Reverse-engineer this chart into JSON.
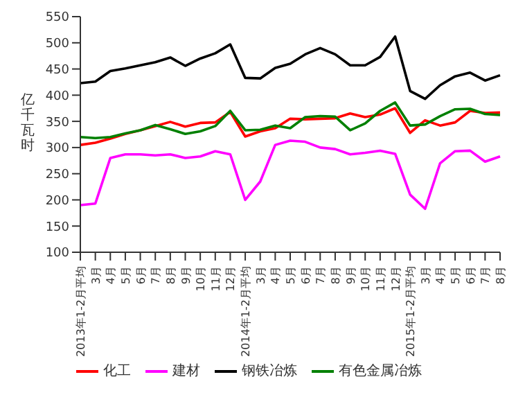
{
  "chart_data": {
    "type": "line",
    "ylabel": "亿千瓦时",
    "categories": [
      "2013年1-2月平均",
      "3月",
      "4月",
      "5月",
      "6月",
      "7月",
      "8月",
      "9月",
      "10月",
      "11月",
      "12月",
      "2014年1-2月平均",
      "3月",
      "4月",
      "5月",
      "6月",
      "7月",
      "8月",
      "9月",
      "10月",
      "11月",
      "12月",
      "2015年1-2月平均",
      "3月",
      "4月",
      "5月",
      "6月",
      "7月",
      "8月"
    ],
    "series": [
      {
        "name": "化工",
        "color": "#ff0000",
        "values": [
          305,
          309,
          317,
          326,
          333,
          341,
          349,
          340,
          347,
          348,
          368,
          321,
          331,
          337,
          355,
          354,
          355,
          356,
          365,
          358,
          363,
          375,
          328,
          352,
          342,
          348,
          370,
          366,
          367
        ]
      },
      {
        "name": "建材",
        "color": "#ff00ff",
        "values": [
          190,
          193,
          280,
          287,
          287,
          285,
          287,
          280,
          283,
          293,
          287,
          200,
          235,
          305,
          313,
          311,
          300,
          297,
          287,
          290,
          294,
          288,
          210,
          183,
          270,
          293,
          294,
          273,
          283
        ]
      },
      {
        "name": "钢铁冶炼",
        "color": "#000000",
        "values": [
          423,
          426,
          446,
          451,
          457,
          463,
          472,
          456,
          470,
          480,
          497,
          433,
          432,
          452,
          460,
          478,
          490,
          478,
          457,
          457,
          473,
          512,
          408,
          393,
          419,
          436,
          443,
          428,
          438
        ]
      },
      {
        "name": "有色金属冶炼",
        "color": "#008000",
        "values": [
          320,
          318,
          320,
          327,
          333,
          343,
          335,
          326,
          331,
          341,
          370,
          333,
          334,
          342,
          337,
          358,
          360,
          359,
          333,
          346,
          370,
          386,
          342,
          344,
          360,
          373,
          374,
          364,
          362
        ]
      }
    ],
    "ylim": [
      100,
      550
    ],
    "yticks": [
      100,
      150,
      200,
      250,
      300,
      350,
      400,
      450,
      500,
      550
    ],
    "grid": false,
    "legend": "bottom",
    "marker": "none",
    "line_style": "solid"
  }
}
